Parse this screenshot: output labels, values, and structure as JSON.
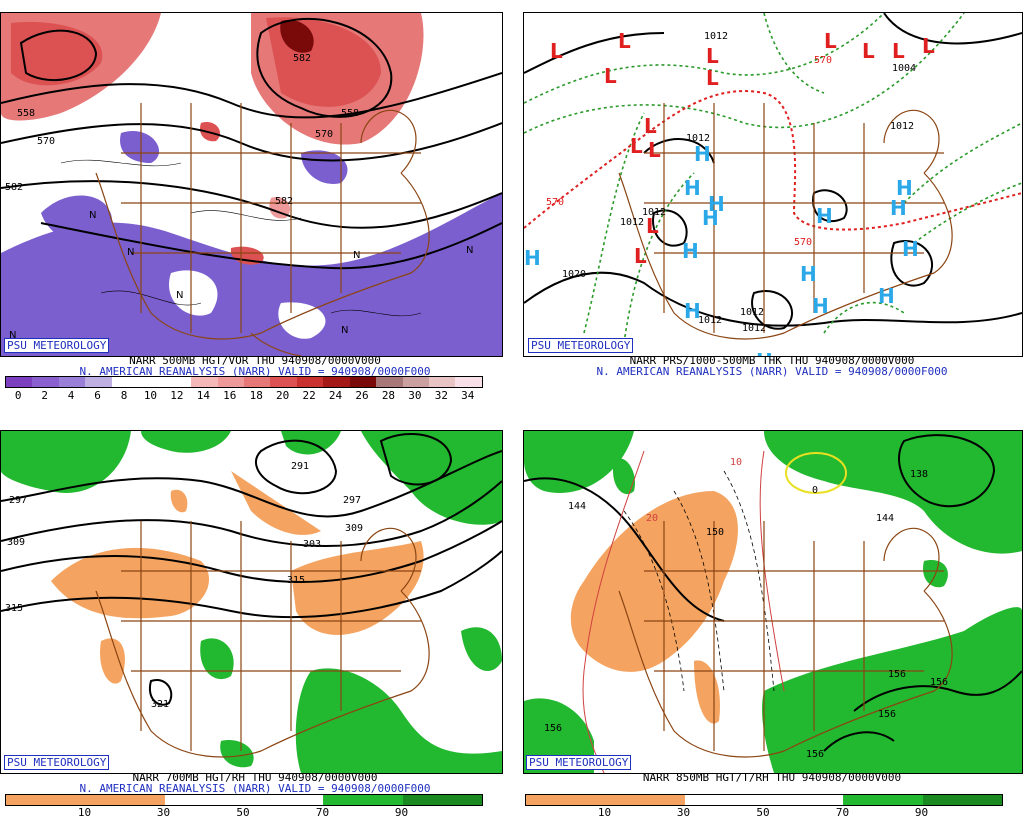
{
  "panels": {
    "p500": {
      "badge": "PSU METEOROLOGY",
      "caption1": "NARR 500MB HGT/VOR THU 940908/0000V000",
      "caption2": "N. AMERICAN REANALYSIS (NARR) VALID = 940908/0000F000",
      "colorbar_labels": [
        "0",
        "2",
        "4",
        "6",
        "8",
        "10",
        "12",
        "14",
        "16",
        "18",
        "20",
        "22",
        "24",
        "26",
        "28",
        "30",
        "32",
        "34"
      ],
      "colorbar_colors": [
        "#7b3fbf",
        "#8a5fcf",
        "#9a7fd8",
        "#bfb0e4",
        "#ffffff",
        "#ffffff",
        "#ffffff",
        "#f4b8b8",
        "#ee9a9a",
        "#e67878",
        "#dc5252",
        "#c93030",
        "#a51818",
        "#7a0a0a",
        "#a87878",
        "#caa0a0",
        "#e8c4c4",
        "#f8e0e8"
      ],
      "contour_labels": [
        "558",
        "570",
        "582",
        "582",
        "558",
        "570",
        "582"
      ]
    },
    "psfc": {
      "badge": "PSU METEOROLOGY",
      "caption1": "NARR PRS/1000-500MB THK THU 940908/0000V000",
      "caption2": "N. AMERICAN REANALYSIS (NARR) VALID = 940908/0000F000",
      "contour_labels": [
        "1012",
        "1004",
        "1012",
        "1012",
        "1012",
        "1012",
        "1020",
        "1012",
        "1012",
        "1012",
        "570",
        "570",
        "570"
      ]
    },
    "p700": {
      "badge": "PSU METEOROLOGY",
      "caption1": "NARR 700MB HGT/RH THU 940908/0000V000",
      "caption2": "N. AMERICAN REANALYSIS (NARR) VALID = 940908/0000F000",
      "colorbar_labels": [
        "10",
        "30",
        "50",
        "70",
        "90"
      ],
      "contour_labels": [
        "297",
        "309",
        "315",
        "291",
        "297",
        "309",
        "303",
        "315",
        "321"
      ]
    },
    "p850": {
      "badge": "PSU METEOROLOGY",
      "caption1": "NARR 850MB HGT/T/RH THU 940908/0000V000",
      "colorbar_labels": [
        "10",
        "30",
        "50",
        "70",
        "90"
      ],
      "contour_labels": [
        "144",
        "150",
        "138",
        "144",
        "156",
        "156",
        "156",
        "156",
        "156",
        "10",
        "20",
        "0"
      ]
    }
  },
  "colors": {
    "map_lines": "#8b4513",
    "vort_purple": "#7b5fcf",
    "vort_red": "#d84040",
    "rh_orange": "#f4a460",
    "rh_green": "#22b830",
    "thickness_green": "#2a9a2a",
    "thickness_red": "#e02020",
    "high_blue": "#2aa8e8",
    "low_red": "#e02020",
    "caption_blue": "#1f2fbf"
  }
}
